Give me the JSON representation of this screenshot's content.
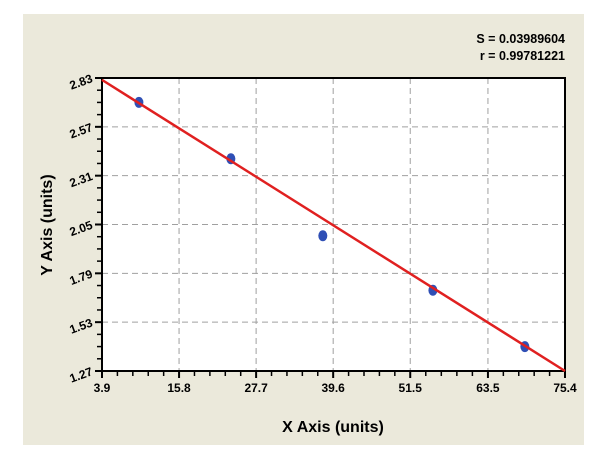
{
  "chart_data": {
    "type": "scatter",
    "title": "",
    "xlabel": "X Axis (units)",
    "ylabel": "Y Axis (units)",
    "xlim": [
      3.9,
      75.4
    ],
    "ylim": [
      1.27,
      2.83
    ],
    "x_ticks": [
      "3.9",
      "15.8",
      "27.7",
      "39.6",
      "51.5",
      "63.5",
      "75.4"
    ],
    "y_ticks": [
      "1.27",
      "1.53",
      "1.79",
      "2.05",
      "2.31",
      "2.57",
      "2.83"
    ],
    "grid": true,
    "points": [
      {
        "x": 9.6,
        "y": 2.7
      },
      {
        "x": 23.8,
        "y": 2.4
      },
      {
        "x": 38.0,
        "y": 1.99
      },
      {
        "x": 55.0,
        "y": 1.7
      },
      {
        "x": 69.2,
        "y": 1.4
      }
    ],
    "fit_line": {
      "x": [
        3.9,
        75.4
      ],
      "y": [
        2.82,
        1.27
      ]
    },
    "annotations": [
      "S = 0.03989604",
      "r = 0.99781221"
    ],
    "colors": {
      "points": "#2f4fb5",
      "fit_line": "#e02020",
      "background": "#ebe9db",
      "plot": "#ffffff",
      "grid": "#a0a0a0"
    }
  }
}
